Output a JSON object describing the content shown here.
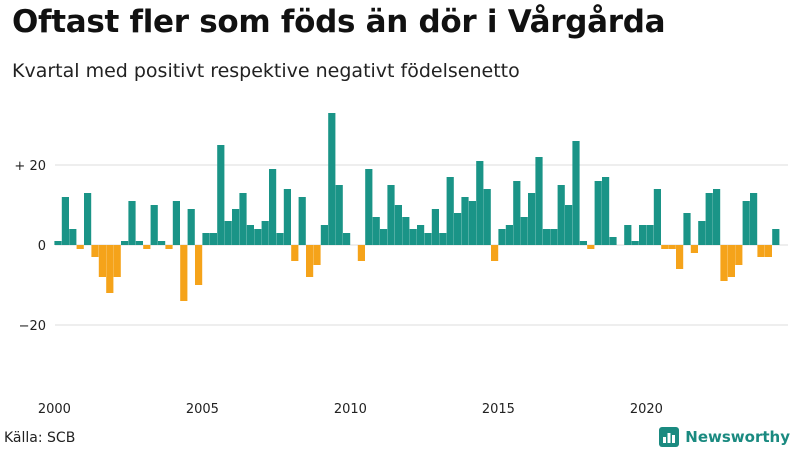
{
  "title": "Oftast fler som föds än dör i Vårgårda",
  "subtitle": "Kvartal med positivt respektive negativt födelsenetto",
  "source": "Källa: SCB",
  "brand": {
    "name": "Newsworthy",
    "icon": "newsworthy-logo-icon"
  },
  "colors": {
    "positive": "#1a9487",
    "negative": "#f5a31a",
    "grid": "#dddddd"
  },
  "chart_data": {
    "type": "bar",
    "title": "Oftast fler som föds än dör i Vårgårda",
    "subtitle": "Kvartal med positivt respektive negativt födelsenetto",
    "xlabel": "",
    "ylabel": "",
    "ylim": [
      -35,
      35
    ],
    "yticks": [
      {
        "value": 20,
        "label": "+ 20"
      },
      {
        "value": 0,
        "label": "0"
      },
      {
        "value": -20,
        "label": "−20"
      }
    ],
    "xticks": [
      {
        "label": "2000",
        "index": 0
      },
      {
        "label": "2005",
        "index": 20
      },
      {
        "label": "2010",
        "index": 40
      },
      {
        "label": "2015",
        "index": 60
      },
      {
        "label": "2020",
        "index": 80
      }
    ],
    "start_quarter": "2000K1",
    "values": [
      1,
      12,
      4,
      -1,
      13,
      -3,
      -8,
      -12,
      -8,
      1,
      11,
      1,
      -1,
      10,
      1,
      -1,
      11,
      -14,
      9,
      -10,
      3,
      3,
      25,
      6,
      9,
      13,
      5,
      4,
      6,
      19,
      3,
      14,
      -4,
      12,
      -8,
      -5,
      5,
      33,
      15,
      3,
      0,
      -4,
      19,
      7,
      4,
      15,
      10,
      7,
      4,
      5,
      3,
      9,
      3,
      17,
      8,
      12,
      11,
      21,
      14,
      -4,
      4,
      5,
      16,
      7,
      13,
      22,
      4,
      4,
      15,
      10,
      26,
      1,
      -1,
      16,
      17,
      2,
      0,
      5,
      1,
      5,
      5,
      14,
      -1,
      -1,
      -6,
      8,
      -2,
      6,
      13,
      14,
      -9,
      -8,
      -5,
      11,
      13,
      -3,
      -3,
      4
    ]
  }
}
